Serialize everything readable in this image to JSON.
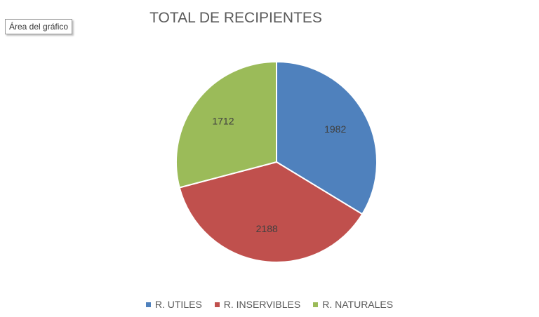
{
  "tooltip": {
    "label": "Área del gráfico"
  },
  "chart_data": {
    "type": "pie",
    "title": "TOTAL DE RECIPIENTES",
    "categories": [
      "R. UTILES",
      "R. INSERVIBLES",
      "R. NATURALES"
    ],
    "values": [
      1982,
      2188,
      1712
    ],
    "colors": [
      "#4f81bd",
      "#c0504d",
      "#9bbb59"
    ],
    "data_labels": [
      "1982",
      "2188",
      "1712"
    ],
    "start_angle_deg": 0,
    "direction": "clockwise",
    "legend_position": "bottom"
  }
}
